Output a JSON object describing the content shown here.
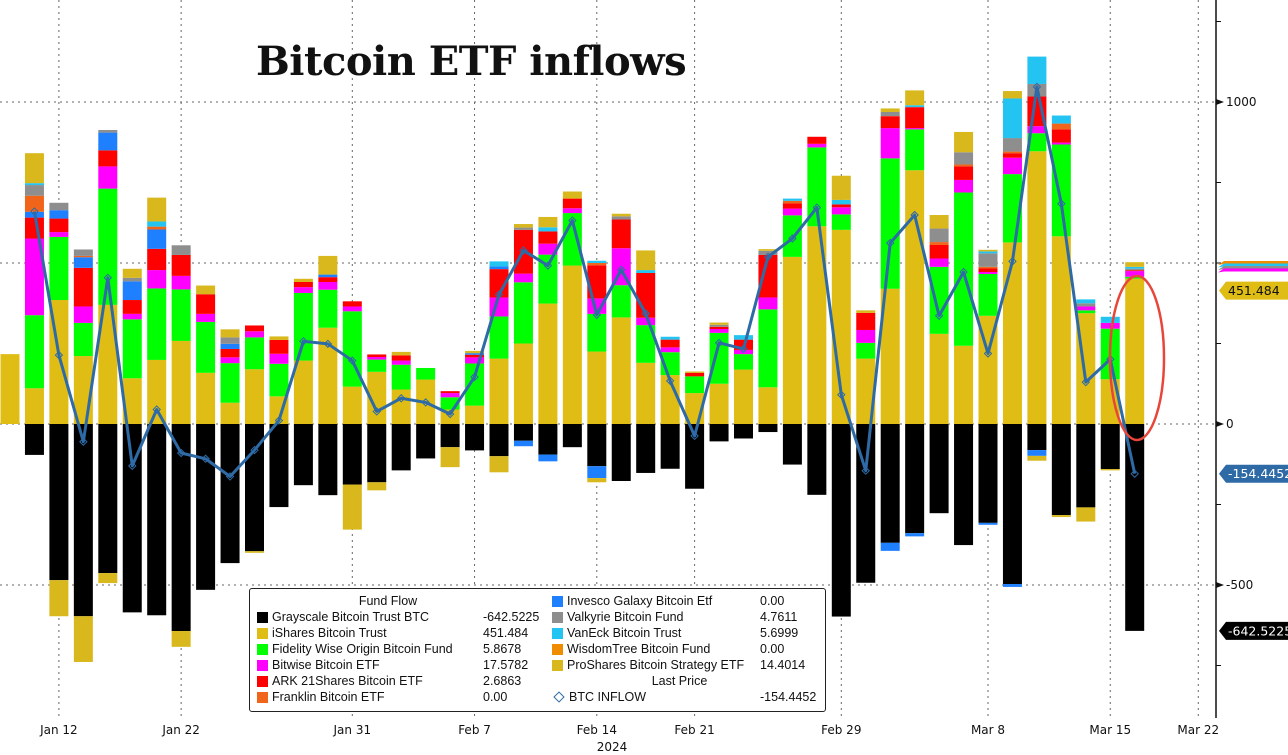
{
  "chart_data": {
    "type": "bar",
    "stacked": true,
    "title": "Bitcoin ETF inflows",
    "x_year_label": "2024",
    "categories": [
      "Jan 11",
      "Jan 12",
      "Jan 16",
      "Jan 17",
      "Jan 18",
      "Jan 19",
      "Jan 22",
      "Jan 23",
      "Jan 24",
      "Jan 25",
      "Jan 26",
      "Jan 29",
      "Jan 30",
      "Jan 31",
      "Feb 1",
      "Feb 2",
      "Feb 5",
      "Feb 6",
      "Feb 7",
      "Feb 8",
      "Feb 9",
      "Feb 12",
      "Feb 13",
      "Feb 14",
      "Feb 15",
      "Feb 16",
      "Feb 20",
      "Feb 21",
      "Feb 22",
      "Feb 23",
      "Feb 26",
      "Feb 27",
      "Feb 28",
      "Feb 29",
      "Mar 1",
      "Mar 4",
      "Mar 5",
      "Mar 6",
      "Mar 7",
      "Mar 8",
      "Mar 11",
      "Mar 12",
      "Mar 13",
      "Mar 14",
      "Mar 15",
      "Mar 18",
      "Mar 19"
    ],
    "x_tick_labels": [
      "Jan 12",
      "Jan 22",
      "Jan 31",
      "Feb 7",
      "Feb 14",
      "Feb 21",
      "Feb 29",
      "Mar 8",
      "Mar 15",
      "Mar 22"
    ],
    "y_tick_labels": [
      1000,
      0,
      -500
    ],
    "ylim": [
      -850,
      1300
    ],
    "grid": true,
    "legend_placement": "bottom-center",
    "legend_header": "Fund Flow",
    "line_header": "Last Price",
    "series": [
      {
        "key": "gbtc",
        "name": "Grayscale Bitcoin Trust BTC",
        "last": "-642.5225",
        "color": "#000000",
        "values": [
          0,
          -96,
          -485,
          -597,
          -463,
          -585,
          -594,
          -643,
          -515,
          -432,
          -395,
          -258,
          -190,
          -221,
          -188,
          -181,
          -144,
          -107,
          -72,
          -82,
          -100,
          -52,
          -95,
          -72,
          -131,
          -177,
          -152,
          -139,
          -201,
          -54,
          -45,
          -25,
          -126,
          -220,
          -598,
          -493,
          -369,
          -339,
          -277,
          -376,
          -307,
          -497,
          -81,
          -283,
          -259,
          -140,
          -642.5225
        ]
      },
      {
        "key": "ibit",
        "name": "iShares Bitcoin Trust",
        "last": "451.484",
        "color": "#dfbd15",
        "values": [
          217,
          111,
          385,
          211,
          370,
          142,
          199,
          258,
          159,
          66,
          170,
          86,
          197,
          299,
          116,
          162,
          107,
          138,
          45,
          57,
          203,
          250,
          374,
          492,
          225,
          331,
          190,
          152,
          96,
          125,
          169,
          114,
          519,
          614,
          603,
          203,
          420,
          788,
          280,
          243,
          336,
          564,
          847,
          583,
          344,
          139,
          451.484
        ]
      },
      {
        "key": "fbtc",
        "name": "Fidelity Wise Origin Bitcoin Fund",
        "last": "5.8678",
        "color": "#00ff00",
        "values": [
          0,
          227,
          196,
          103,
          361,
          183,
          222,
          160,
          158,
          123,
          99,
          101,
          210,
          118,
          234,
          38,
          77,
          36,
          38,
          131,
          131,
          190,
          152,
          163,
          117,
          100,
          117,
          71,
          52,
          158,
          48,
          242,
          129,
          245,
          48,
          49,
          405,
          127,
          208,
          476,
          130,
          212,
          56,
          285,
          9,
          157,
          5.8678
        ]
      },
      {
        "key": "bitb",
        "name": "Bitwise Bitcoin ETF",
        "last": "17.5782",
        "color": "#ff00ff",
        "values": [
          0,
          238,
          15,
          51,
          69,
          17,
          57,
          42,
          25,
          18,
          19,
          31,
          18,
          24,
          15,
          8,
          13,
          0,
          13,
          19,
          59,
          27,
          34,
          15,
          48,
          115,
          23,
          15,
          0,
          12,
          13,
          37,
          21,
          11,
          22,
          40,
          94,
          4,
          26,
          39,
          6,
          51,
          22,
          6,
          12,
          18,
          17.5782
        ]
      },
      {
        "key": "arkb",
        "name": "ARK 21Shares Bitcoin ETF",
        "last": "2.6863",
        "color": "#ff0000",
        "values": [
          0,
          65,
          42,
          120,
          50,
          43,
          66,
          65,
          61,
          26,
          18,
          43,
          16,
          15,
          16,
          8,
          16,
          0,
          6,
          8,
          88,
          136,
          38,
          30,
          103,
          89,
          139,
          24,
          11,
          7,
          32,
          132,
          16,
          22,
          9,
          53,
          37,
          65,
          42,
          42,
          11,
          14,
          92,
          41,
          0,
          0,
          2.6863
        ]
      },
      {
        "key": "franklin",
        "name": "Franklin Bitcoin ETF",
        "last": "0.00",
        "color": "#f0651a",
        "values": [
          0,
          50,
          0,
          4,
          0,
          0,
          9,
          0,
          0,
          0,
          0,
          0,
          0,
          0,
          0,
          0,
          0,
          0,
          0,
          0,
          0,
          0,
          0,
          0,
          7,
          0,
          0,
          0,
          0,
          0,
          0,
          0,
          8,
          0,
          0,
          0,
          0,
          0,
          9,
          6,
          5,
          5,
          0,
          18,
          0,
          0,
          0
        ]
      },
      {
        "key": "invesco",
        "name": "Invesco Galaxy Bitcoin Etf",
        "last": "0.00",
        "color": "#1e80ff",
        "values": [
          0,
          18,
          26,
          33,
          55,
          58,
          60,
          0,
          0,
          16,
          0,
          0,
          0,
          8,
          0,
          0,
          0,
          0,
          0,
          5,
          8,
          -17,
          -21,
          0,
          -37,
          0,
          0,
          0,
          0,
          0,
          0,
          0,
          0,
          0,
          0,
          0,
          -25,
          -10,
          0,
          0,
          -6,
          -9,
          -18,
          0,
          0,
          0,
          0
        ]
      },
      {
        "key": "valkyrie",
        "name": "Valkyrie Bitcoin Fund",
        "last": "4.7611",
        "color": "#8e8e8e",
        "values": [
          0,
          33,
          23,
          20,
          8,
          11,
          0,
          30,
          0,
          20,
          0,
          0,
          0,
          0,
          0,
          0,
          0,
          0,
          0,
          0,
          0,
          7,
          0,
          0,
          0,
          10,
          0,
          0,
          0,
          6,
          0,
          13,
          0,
          0,
          0,
          0,
          13,
          0,
          42,
          38,
          42,
          42,
          39,
          0,
          10,
          0,
          4.7611
        ]
      },
      {
        "key": "vaneck",
        "name": "VanEck Bitcoin Trust",
        "last": "5.6999",
        "color": "#24c4f2",
        "values": [
          0,
          6,
          0,
          0,
          0,
          0,
          16,
          0,
          0,
          0,
          0,
          0,
          0,
          0,
          0,
          0,
          0,
          0,
          0,
          0,
          16,
          0,
          13,
          0,
          7,
          0,
          9,
          9,
          0,
          0,
          14,
          0,
          7,
          0,
          14,
          0,
          0,
          6,
          0,
          0,
          6,
          123,
          85,
          25,
          12,
          19,
          5.6999
        ]
      },
      {
        "key": "wisdomtree",
        "name": "WisdomTree Bitcoin Fund",
        "last": "0.00",
        "color": "#f08c00",
        "values": [
          0,
          0,
          0,
          0,
          0,
          0,
          0,
          0,
          0,
          0,
          0,
          0,
          0,
          0,
          0,
          0,
          0,
          0,
          0,
          0,
          0,
          0,
          0,
          0,
          0,
          0,
          0,
          0,
          0,
          0,
          0,
          0,
          0,
          0,
          0,
          0,
          0,
          0,
          0,
          0,
          0,
          0,
          0,
          0,
          0,
          0,
          0
        ]
      },
      {
        "key": "proshares",
        "name": "ProShares Bitcoin Strategy ETF",
        "last": "14.4014",
        "color": "#d8b81c",
        "values": [
          0,
          93,
          -112,
          -142,
          -31,
          28,
          74,
          -49,
          27,
          25,
          -5,
          11,
          10,
          58,
          -140,
          -25,
          11,
          0,
          -62,
          7,
          -50,
          11,
          32,
          22,
          -13,
          8,
          61,
          0,
          4,
          7,
          0,
          5,
          0,
          0,
          75,
          8,
          11,
          46,
          42,
          63,
          5,
          23,
          -15,
          -6,
          -44,
          -4,
          14.4014
        ]
      }
    ],
    "line": {
      "name": "BTC INFLOW",
      "last": "-154.4452",
      "color": "#2e6aa6",
      "values": [
        null,
        660,
        214,
        -55,
        454,
        -130,
        45,
        -90,
        -108,
        -163,
        -81,
        11,
        257,
        249,
        197,
        39,
        80,
        67,
        31,
        146,
        402,
        539,
        492,
        632,
        339,
        479,
        343,
        134,
        -37,
        252,
        233,
        519,
        576,
        672,
        91,
        -145,
        562,
        649,
        336,
        472,
        219,
        505,
        1047,
        684,
        130,
        201,
        -154.4452
      ]
    },
    "right_axis_tags": [
      {
        "label": "451.484",
        "color": "#dfbd15",
        "text_color": "#111111",
        "value": 451.484
      },
      {
        "label": "-154.4452",
        "color": "#2e6aa6",
        "text_color": "#ffffff",
        "value": -154.4452
      },
      {
        "label": "-642.5225",
        "color": "#000000",
        "text_color": "#ffffff",
        "value": -642.5225
      }
    ],
    "annotation": {
      "shape": "ellipse",
      "color": "#e8463a",
      "target": "Mar 19"
    }
  }
}
